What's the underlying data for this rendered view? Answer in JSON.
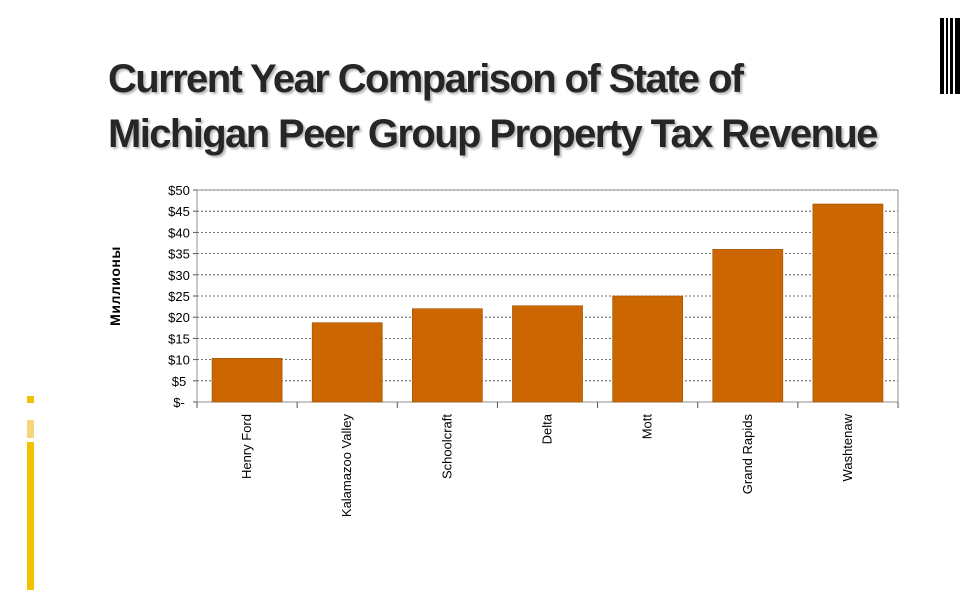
{
  "slide": {
    "title_line1": "Current Year Comparison of State of",
    "title_line2": "Michigan Peer Group Property Tax Revenue"
  },
  "colors": {
    "bar": "#CC6600",
    "bar_stroke": "#9E4F00",
    "accent_gold": "#F2C200",
    "title": "#262626"
  },
  "chart_data": {
    "type": "bar",
    "categories": [
      "Henry Ford",
      "Kalamazoo Valley",
      "Schoolcraft",
      "Delta",
      "Mott",
      "Grand Rapids",
      "Washtenaw"
    ],
    "values": [
      10.3,
      18.7,
      22.0,
      22.7,
      25.0,
      36.0,
      46.7
    ],
    "title": "",
    "xlabel": "",
    "ylabel": "Миллионы",
    "ylim": [
      0,
      50
    ],
    "yticks": [
      0,
      5,
      10,
      15,
      20,
      25,
      30,
      35,
      40,
      45,
      50
    ],
    "ytick_labels": [
      "$-",
      "$5",
      "$10",
      "$15",
      "$20",
      "$25",
      "$30",
      "$35",
      "$40",
      "$45",
      "$50"
    ],
    "grid": true,
    "legend": "none"
  }
}
